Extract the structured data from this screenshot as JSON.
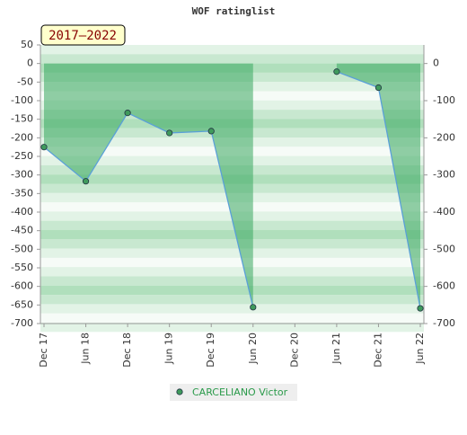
{
  "chart_data": {
    "type": "line",
    "title": "WOF ratinglist",
    "annotation": "2017–2022",
    "categories": [
      "Dec 17",
      "Jun 18",
      "Dec 18",
      "Jun 19",
      "Dec 19",
      "Jun 20",
      "Dec 20",
      "Jun 21",
      "Dec 21",
      "Jun 22"
    ],
    "series": [
      {
        "name": "CARCELIANO Victor",
        "color": "#5aa0d8",
        "marker_color": "#3f9a5c",
        "fill_color": "#3aa860",
        "values": [
          -225,
          -317,
          -133,
          -187,
          -182,
          -656,
          null,
          -22,
          -65,
          -659
        ]
      }
    ],
    "ylim": [
      -700,
      50
    ],
    "yticks": [
      50,
      0,
      -50,
      -100,
      -150,
      -200,
      -250,
      -300,
      -350,
      -400,
      -450,
      -500,
      -550,
      -600,
      -650,
      -700
    ],
    "y2lim": [
      -700,
      50
    ],
    "y2ticks": [
      0,
      -100,
      -200,
      -300,
      -400,
      -500,
      -600,
      -700
    ]
  }
}
